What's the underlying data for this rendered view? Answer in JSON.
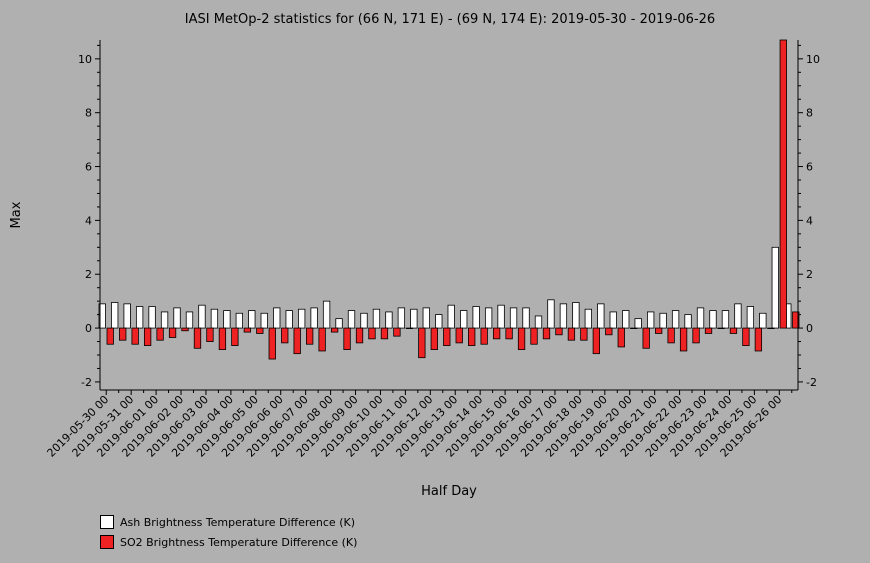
{
  "chart_data": {
    "type": "bar",
    "title": "IASI MetOp-2 statistics for (66 N, 171 E) - (69 N, 174 E): 2019-05-30 - 2019-06-26",
    "xlabel": "Half Day",
    "ylabel": "Max",
    "ylim": [
      -2.3,
      10.7
    ],
    "yticks": [
      -2,
      0,
      2,
      4,
      6,
      8,
      10
    ],
    "grid": false,
    "legend_position": "bottom-left",
    "x_tick_labels": [
      "2019-05-30 00",
      "2019-05-31 00",
      "2019-06-01 00",
      "2019-06-02 00",
      "2019-06-03 00",
      "2019-06-04 00",
      "2019-06-05 00",
      "2019-06-06 00",
      "2019-06-07 00",
      "2019-06-08 00",
      "2019-06-09 00",
      "2019-06-10 00",
      "2019-06-11 00",
      "2019-06-12 00",
      "2019-06-13 00",
      "2019-06-14 00",
      "2019-06-15 00",
      "2019-06-16 00",
      "2019-06-17 00",
      "2019-06-18 00",
      "2019-06-19 00",
      "2019-06-20 00",
      "2019-06-21 00",
      "2019-06-22 00",
      "2019-06-23 00",
      "2019-06-24 00",
      "2019-06-25 00",
      "2019-06-26 00"
    ],
    "series": [
      {
        "name": "Ash Brightness Temperature Difference (K)",
        "color": "#ffffff",
        "values": [
          0.9,
          0.95,
          0.9,
          0.8,
          0.8,
          0.6,
          0.75,
          0.6,
          0.85,
          0.7,
          0.65,
          0.55,
          0.65,
          0.55,
          0.75,
          0.65,
          0.7,
          0.75,
          1.0,
          0.35,
          0.65,
          0.55,
          0.7,
          0.6,
          0.75,
          0.7,
          0.75,
          0.5,
          0.85,
          0.65,
          0.8,
          0.75,
          0.85,
          0.75,
          0.75,
          0.45,
          1.05,
          0.9,
          0.95,
          0.7,
          0.9,
          0.6,
          0.65,
          0.35,
          0.6,
          0.55,
          0.65,
          0.5,
          0.75,
          0.65,
          0.65,
          0.9,
          0.8,
          0.55,
          3.0,
          0.9
        ]
      },
      {
        "name": "SO2 Brightness Temperature Difference (K)",
        "color": "#ee2222",
        "values": [
          -0.6,
          -0.45,
          -0.6,
          -0.65,
          -0.45,
          -0.35,
          -0.1,
          -0.75,
          -0.5,
          -0.8,
          -0.65,
          -0.15,
          -0.2,
          -1.15,
          -0.55,
          -0.95,
          -0.6,
          -0.85,
          -0.15,
          -0.8,
          -0.55,
          -0.4,
          -0.4,
          -0.3,
          0.0,
          -1.1,
          -0.8,
          -0.65,
          -0.55,
          -0.65,
          -0.6,
          -0.4,
          -0.4,
          -0.8,
          -0.6,
          -0.4,
          -0.25,
          -0.45,
          -0.45,
          -0.95,
          -0.25,
          -0.7,
          0.0,
          -0.75,
          -0.2,
          -0.55,
          -0.85,
          -0.55,
          -0.2,
          0.0,
          -0.2,
          -0.65,
          -0.85,
          0.0,
          10.7,
          0.6
        ]
      }
    ]
  }
}
